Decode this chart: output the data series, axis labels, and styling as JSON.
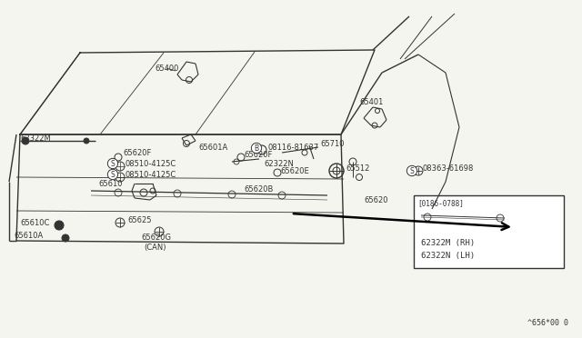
{
  "bg_color": "#f5f5f0",
  "line_color": "#333333",
  "footer_text": "^656*00 0",
  "inset_label": "[0186-0788]",
  "inset_parts": [
    "62322M (RH)",
    "62322N (LH)"
  ],
  "fig_width": 6.4,
  "fig_height": 3.72,
  "dpi": 100
}
